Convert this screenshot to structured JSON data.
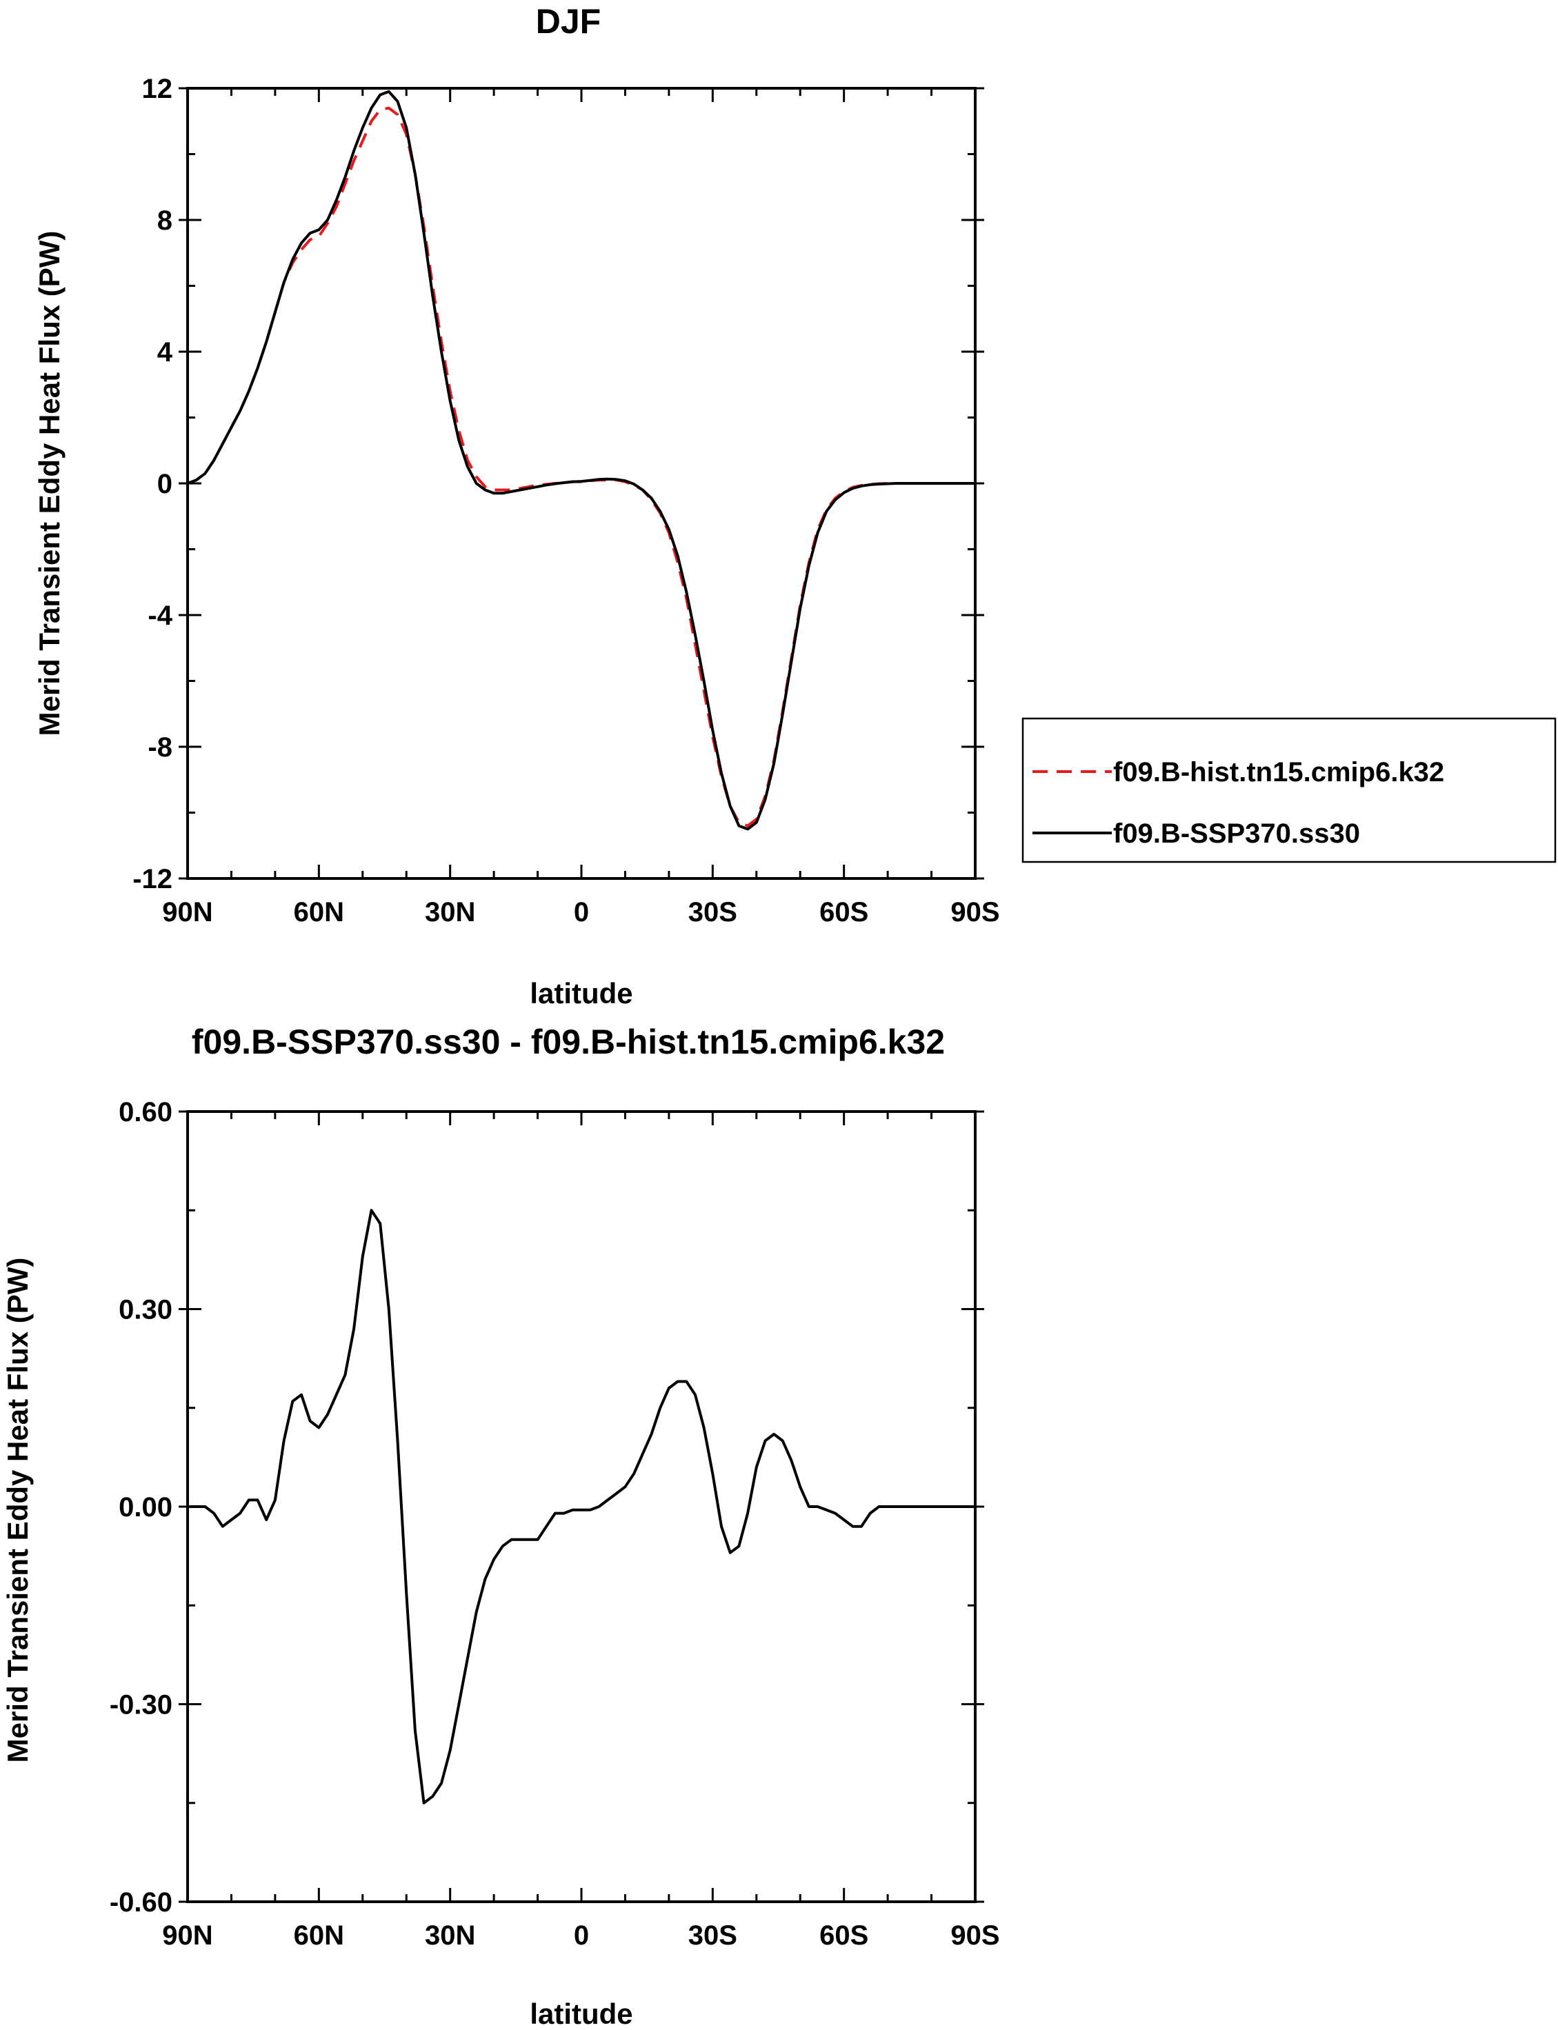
{
  "chart_data": [
    {
      "type": "line",
      "title": "DJF",
      "xlabel": "latitude",
      "ylabel": "Merid Transient Eddy Heat Flux (PW)",
      "xlim": [
        90,
        -90
      ],
      "ylim": [
        -12,
        12
      ],
      "x_ticks": [
        {
          "value": 90,
          "label": "90N"
        },
        {
          "value": 60,
          "label": "60N"
        },
        {
          "value": 30,
          "label": "30N"
        },
        {
          "value": 0,
          "label": "0"
        },
        {
          "value": -30,
          "label": "30S"
        },
        {
          "value": -60,
          "label": "60S"
        },
        {
          "value": -90,
          "label": "90S"
        }
      ],
      "y_ticks": [
        {
          "value": 12,
          "label": "12"
        },
        {
          "value": 8,
          "label": "8"
        },
        {
          "value": 4,
          "label": "4"
        },
        {
          "value": 0,
          "label": "0"
        },
        {
          "value": -4,
          "label": "-4"
        },
        {
          "value": -8,
          "label": "-8"
        },
        {
          "value": -12,
          "label": "-12"
        }
      ],
      "grid": false,
      "legend": "right",
      "series": [
        {
          "name": "f09.B-hist.tn15.cmip6.k32",
          "color": "#e8191c",
          "dash": "dashed",
          "x": [
            90,
            88,
            86,
            84,
            82,
            80,
            78,
            76,
            74,
            72,
            70,
            68,
            66,
            64,
            62,
            60,
            58,
            56,
            54,
            52,
            50,
            48,
            46,
            44,
            42,
            40,
            38,
            36,
            34,
            32,
            30,
            28,
            26,
            24,
            22,
            20,
            18,
            16,
            14,
            12,
            10,
            8,
            6,
            4,
            2,
            0,
            -2,
            -4,
            -6,
            -8,
            -10,
            -12,
            -14,
            -16,
            -18,
            -20,
            -22,
            -24,
            -26,
            -28,
            -30,
            -32,
            -34,
            -36,
            -38,
            -40,
            -42,
            -44,
            -46,
            -48,
            -50,
            -52,
            -54,
            -56,
            -58,
            -60,
            -62,
            -64,
            -66,
            -68,
            -70,
            -72,
            -74,
            -76,
            -78,
            -80,
            -82,
            -84,
            -86,
            -88,
            -90
          ],
          "y": [
            0.0,
            0.1,
            0.3,
            0.7,
            1.2,
            1.7,
            2.2,
            2.8,
            3.5,
            4.3,
            5.2,
            6.1,
            6.7,
            7.1,
            7.4,
            7.5,
            7.9,
            8.4,
            9.1,
            9.8,
            10.4,
            11.0,
            11.35,
            11.4,
            11.2,
            10.6,
            9.4,
            7.8,
            6.0,
            4.3,
            2.8,
            1.6,
            0.7,
            0.2,
            -0.1,
            -0.2,
            -0.2,
            -0.2,
            -0.15,
            -0.1,
            -0.05,
            -0.03,
            0.0,
            0.02,
            0.05,
            0.05,
            0.08,
            0.1,
            0.1,
            0.1,
            0.05,
            -0.05,
            -0.2,
            -0.5,
            -0.9,
            -1.5,
            -2.4,
            -3.5,
            -4.9,
            -6.3,
            -7.7,
            -8.9,
            -9.8,
            -10.3,
            -10.4,
            -10.2,
            -9.5,
            -8.4,
            -6.9,
            -5.3,
            -3.7,
            -2.4,
            -1.4,
            -0.8,
            -0.45,
            -0.25,
            -0.12,
            -0.06,
            -0.03,
            -0.01,
            0.0,
            0.0,
            0.0,
            0.0,
            0.0,
            0.0,
            0.0,
            0.0,
            0.0,
            0.0,
            0.0
          ]
        },
        {
          "name": "f09.B-SSP370.ss30",
          "color": "#000000",
          "dash": "solid",
          "x": [
            90,
            88,
            86,
            84,
            82,
            80,
            78,
            76,
            74,
            72,
            70,
            68,
            66,
            64,
            62,
            60,
            58,
            56,
            54,
            52,
            50,
            48,
            46,
            44,
            42,
            40,
            38,
            36,
            34,
            32,
            30,
            28,
            26,
            24,
            22,
            20,
            18,
            16,
            14,
            12,
            10,
            8,
            6,
            4,
            2,
            0,
            -2,
            -4,
            -6,
            -8,
            -10,
            -12,
            -14,
            -16,
            -18,
            -20,
            -22,
            -24,
            -26,
            -28,
            -30,
            -32,
            -34,
            -36,
            -38,
            -40,
            -42,
            -44,
            -46,
            -48,
            -50,
            -52,
            -54,
            -56,
            -58,
            -60,
            -62,
            -64,
            -66,
            -68,
            -70,
            -72,
            -74,
            -76,
            -78,
            -80,
            -82,
            -84,
            -86,
            -88,
            -90
          ],
          "y": [
            0.0,
            0.1,
            0.3,
            0.7,
            1.2,
            1.7,
            2.2,
            2.8,
            3.5,
            4.3,
            5.2,
            6.1,
            6.8,
            7.3,
            7.6,
            7.7,
            8.0,
            8.6,
            9.3,
            10.1,
            10.8,
            11.4,
            11.8,
            11.9,
            11.6,
            10.8,
            9.4,
            7.6,
            5.7,
            4.0,
            2.5,
            1.3,
            0.5,
            0.0,
            -0.2,
            -0.3,
            -0.3,
            -0.25,
            -0.2,
            -0.15,
            -0.1,
            -0.05,
            -0.01,
            0.02,
            0.05,
            0.06,
            0.09,
            0.12,
            0.13,
            0.12,
            0.08,
            -0.02,
            -0.2,
            -0.45,
            -0.85,
            -1.4,
            -2.2,
            -3.3,
            -4.6,
            -6.0,
            -7.5,
            -8.8,
            -9.8,
            -10.4,
            -10.5,
            -10.3,
            -9.6,
            -8.5,
            -7.0,
            -5.4,
            -3.8,
            -2.5,
            -1.5,
            -0.85,
            -0.5,
            -0.28,
            -0.15,
            -0.08,
            -0.04,
            -0.02,
            -0.01,
            0.0,
            0.0,
            0.0,
            0.0,
            0.0,
            0.0,
            0.0,
            0.0,
            0.0,
            0.0
          ]
        }
      ]
    },
    {
      "type": "line",
      "title": "f09.B-SSP370.ss30 - f09.B-hist.tn15.cmip6.k32",
      "xlabel": "latitude",
      "ylabel": "Merid Transient Eddy Heat Flux (PW)",
      "xlim": [
        90,
        -90
      ],
      "ylim": [
        -0.6,
        0.6
      ],
      "x_ticks": [
        {
          "value": 90,
          "label": "90N"
        },
        {
          "value": 60,
          "label": "60N"
        },
        {
          "value": 30,
          "label": "30N"
        },
        {
          "value": 0,
          "label": "0"
        },
        {
          "value": -30,
          "label": "30S"
        },
        {
          "value": -60,
          "label": "60S"
        },
        {
          "value": -90,
          "label": "90S"
        }
      ],
      "y_ticks": [
        {
          "value": 0.6,
          "label": "0.60"
        },
        {
          "value": 0.3,
          "label": "0.30"
        },
        {
          "value": 0.0,
          "label": "0.00"
        },
        {
          "value": -0.3,
          "label": "-0.30"
        },
        {
          "value": -0.6,
          "label": "-0.60"
        }
      ],
      "grid": false,
      "legend": "none",
      "series": [
        {
          "color": "#000000",
          "dash": "solid",
          "x": [
            90,
            88,
            86,
            84,
            82,
            80,
            78,
            76,
            74,
            72,
            70,
            68,
            66,
            64,
            62,
            60,
            58,
            56,
            54,
            52,
            50,
            48,
            46,
            44,
            42,
            40,
            38,
            36,
            34,
            32,
            30,
            28,
            26,
            24,
            22,
            20,
            18,
            16,
            14,
            12,
            10,
            8,
            6,
            4,
            2,
            0,
            -2,
            -4,
            -6,
            -8,
            -10,
            -12,
            -14,
            -16,
            -18,
            -20,
            -22,
            -24,
            -26,
            -28,
            -30,
            -32,
            -34,
            -36,
            -38,
            -40,
            -42,
            -44,
            -46,
            -48,
            -50,
            -52,
            -54,
            -56,
            -58,
            -60,
            -62,
            -64,
            -66,
            -68,
            -70,
            -72,
            -74,
            -76,
            -78,
            -80,
            -82,
            -84,
            -86,
            -88,
            -90
          ],
          "y": [
            0.0,
            0.0,
            0.0,
            -0.01,
            -0.03,
            -0.02,
            -0.01,
            0.01,
            0.01,
            -0.02,
            0.01,
            0.1,
            0.16,
            0.17,
            0.13,
            0.12,
            0.14,
            0.17,
            0.2,
            0.27,
            0.38,
            0.45,
            0.43,
            0.3,
            0.1,
            -0.13,
            -0.34,
            -0.45,
            -0.44,
            -0.42,
            -0.37,
            -0.3,
            -0.23,
            -0.16,
            -0.11,
            -0.08,
            -0.06,
            -0.05,
            -0.05,
            -0.05,
            -0.05,
            -0.03,
            -0.01,
            -0.01,
            -0.005,
            -0.005,
            -0.005,
            0.0,
            0.01,
            0.02,
            0.03,
            0.05,
            0.08,
            0.11,
            0.15,
            0.18,
            0.19,
            0.19,
            0.17,
            0.12,
            0.05,
            -0.03,
            -0.07,
            -0.06,
            -0.01,
            0.06,
            0.1,
            0.11,
            0.1,
            0.07,
            0.03,
            0.0,
            0.0,
            -0.005,
            -0.01,
            -0.02,
            -0.03,
            -0.03,
            -0.01,
            0.0,
            0.0,
            0.0,
            0.0,
            0.0,
            0.0,
            0.0,
            0.0,
            0.0,
            0.0,
            0.0,
            0.0
          ]
        }
      ]
    }
  ]
}
